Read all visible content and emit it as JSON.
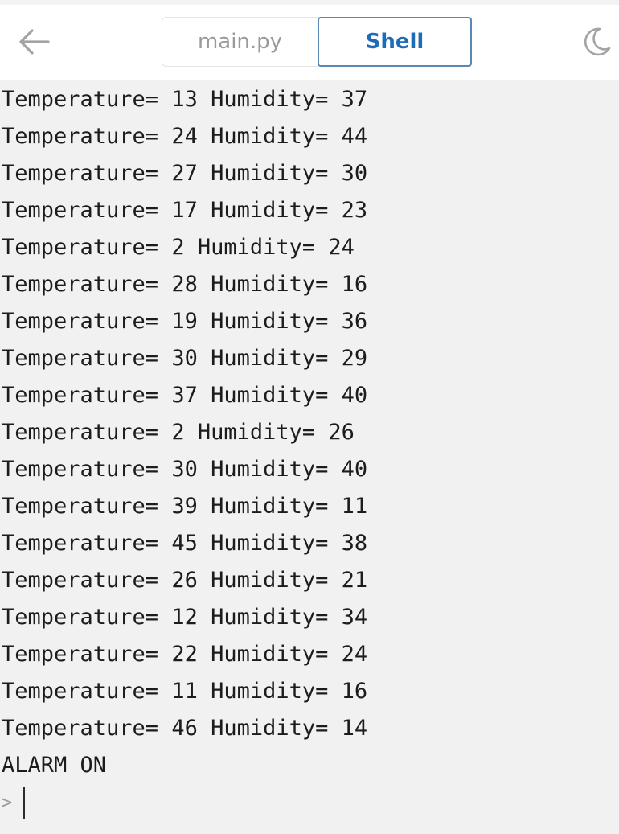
{
  "toolbar": {
    "back_icon": "arrow-left-icon",
    "tabs": [
      {
        "label": "main.py",
        "active": false
      },
      {
        "label": "Shell",
        "active": true
      }
    ],
    "theme_icon": "moon-icon"
  },
  "console": {
    "lines": [
      "Temperature= 13 Humidity= 37",
      "Temperature= 24 Humidity= 44",
      "Temperature= 27 Humidity= 30",
      "Temperature= 17 Humidity= 23",
      "Temperature= 2 Humidity= 24",
      "Temperature= 28 Humidity= 16",
      "Temperature= 19 Humidity= 36",
      "Temperature= 30 Humidity= 29",
      "Temperature= 37 Humidity= 40",
      "Temperature= 2 Humidity= 26",
      "Temperature= 30 Humidity= 40",
      "Temperature= 39 Humidity= 11",
      "Temperature= 45 Humidity= 38",
      "Temperature= 26 Humidity= 21",
      "Temperature= 12 Humidity= 34",
      "Temperature= 22 Humidity= 24",
      "Temperature= 11 Humidity= 16",
      "Temperature= 46 Humidity= 14",
      "ALARM ON"
    ],
    "prompt": ">"
  },
  "colors": {
    "accent": "#1f6bb8",
    "active_tab_border": "#5b87b5",
    "background": "#f1f1f1"
  }
}
